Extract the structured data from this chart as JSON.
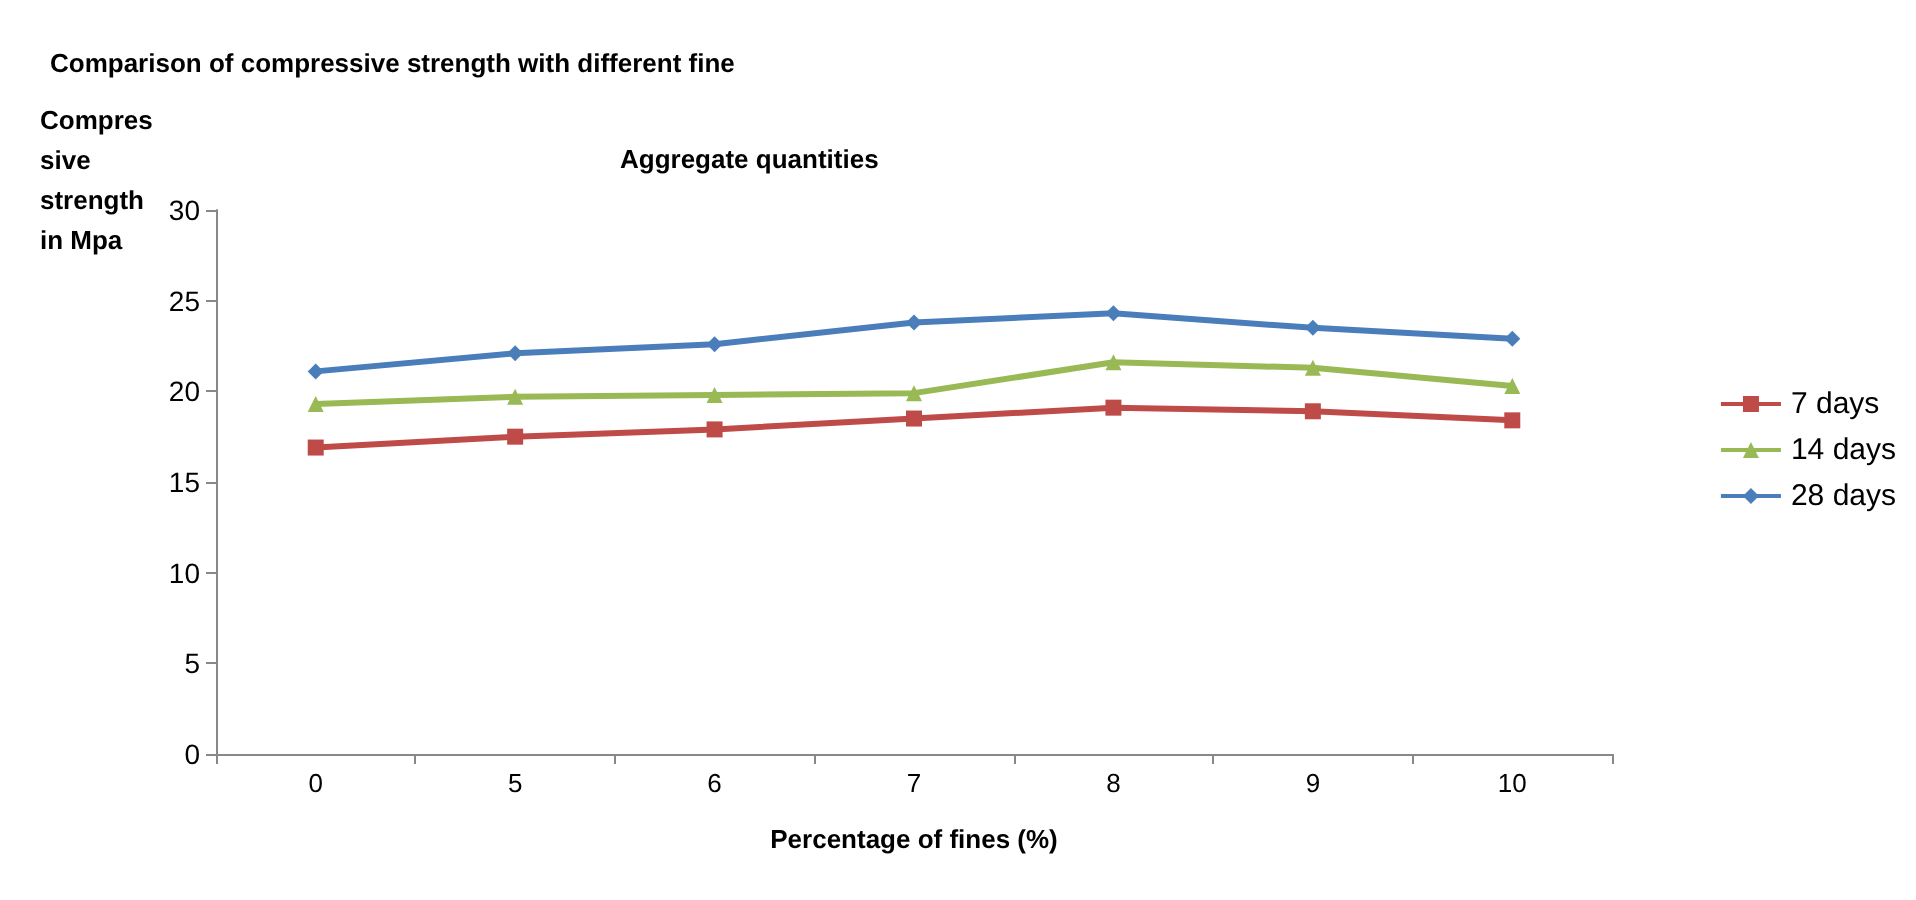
{
  "chart_data": {
    "type": "line",
    "title": "Comparison of compressive strength with different fine",
    "subtitle": "Aggregate quantities",
    "xlabel": "Percentage of fines (%)",
    "ylabel": "Compressive strength in Mpa",
    "categories": [
      "0",
      "5",
      "6",
      "7",
      "8",
      "9",
      "10"
    ],
    "series": [
      {
        "name": "7 days",
        "color": "#be4b48",
        "marker": "square",
        "values": [
          16.9,
          17.5,
          17.9,
          18.5,
          19.1,
          18.9,
          18.4
        ]
      },
      {
        "name": "14 days",
        "color": "#98b954",
        "marker": "triangle",
        "values": [
          19.3,
          19.7,
          19.8,
          19.9,
          21.6,
          21.3,
          20.3
        ]
      },
      {
        "name": "28 days",
        "color": "#4a7ebb",
        "marker": "diamond",
        "values": [
          21.1,
          22.1,
          22.6,
          23.8,
          24.3,
          23.5,
          22.9
        ]
      }
    ],
    "ylim": [
      0,
      30
    ],
    "yticks": [
      0,
      5,
      10,
      15,
      20,
      25,
      30
    ],
    "grid": false,
    "legend": "right"
  }
}
